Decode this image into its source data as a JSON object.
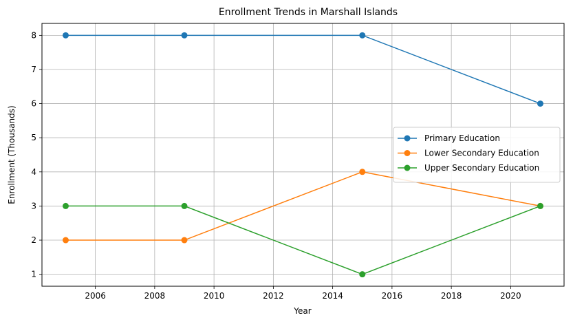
{
  "chart_data": {
    "type": "line",
    "title": "Enrollment Trends in Marshall Islands",
    "xlabel": "Year",
    "ylabel": "Enrollment (Thousands)",
    "x": [
      2005,
      2009,
      2015,
      2021
    ],
    "xlim": [
      2004.2,
      2021.8
    ],
    "ylim": [
      0.65,
      8.35
    ],
    "xticks": [
      2006,
      2008,
      2010,
      2012,
      2014,
      2016,
      2018,
      2020
    ],
    "yticks": [
      1,
      2,
      3,
      4,
      5,
      6,
      7,
      8
    ],
    "grid": true,
    "legend_position": "center-right",
    "series": [
      {
        "name": "Primary Education",
        "color": "#1f77b4",
        "values": [
          8,
          8,
          8,
          6
        ]
      },
      {
        "name": "Lower Secondary Education",
        "color": "#ff7f0e",
        "values": [
          2,
          2,
          4,
          3
        ]
      },
      {
        "name": "Upper Secondary Education",
        "color": "#2ca02c",
        "values": [
          3,
          3,
          1,
          3
        ]
      }
    ]
  }
}
